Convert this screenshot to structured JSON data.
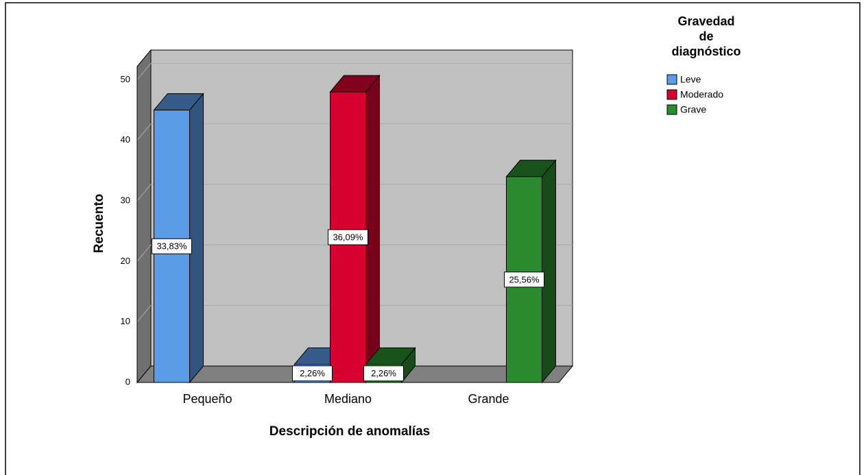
{
  "chart_data": {
    "type": "bar3d",
    "x_label": "Descripción de anomalías",
    "y_label": "Recuento",
    "legend_title": "Gravedad de diagnóstico",
    "legend": "right",
    "categories": [
      "Pequeño",
      "Mediano",
      "Grande"
    ],
    "series": [
      {
        "name": "Leve",
        "color": "#5a9be6",
        "values": [
          45,
          3,
          null
        ],
        "percent_labels": [
          "33,83%",
          "2,26%",
          null
        ]
      },
      {
        "name": "Moderado",
        "color": "#d8002f",
        "values": [
          null,
          48,
          null
        ],
        "percent_labels": [
          null,
          "36,09%",
          null
        ]
      },
      {
        "name": "Grave",
        "color": "#2a8a2e",
        "values": [
          null,
          3,
          34
        ],
        "percent_labels": [
          null,
          "2,26%",
          "25,56%"
        ]
      }
    ],
    "ylim": [
      0,
      52.2
    ],
    "yticks": [
      0,
      10,
      20,
      30,
      40,
      50
    ],
    "grid": true
  }
}
